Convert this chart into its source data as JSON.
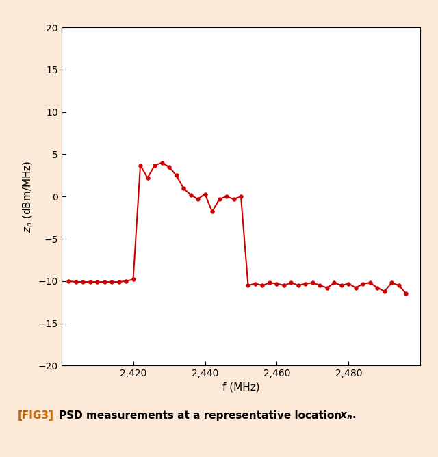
{
  "x": [
    2402,
    2404,
    2406,
    2408,
    2410,
    2412,
    2414,
    2416,
    2418,
    2420,
    2422,
    2424,
    2426,
    2428,
    2430,
    2432,
    2434,
    2436,
    2438,
    2440,
    2442,
    2444,
    2446,
    2448,
    2450,
    2452,
    2454,
    2456,
    2458,
    2460,
    2462,
    2464,
    2466,
    2468,
    2470,
    2472,
    2474,
    2476,
    2478,
    2480,
    2482,
    2484,
    2486,
    2488,
    2490,
    2492,
    2494,
    2496
  ],
  "y": [
    -10.0,
    -10.1,
    -10.1,
    -10.1,
    -10.1,
    -10.1,
    -10.1,
    -10.1,
    -10.0,
    -9.8,
    3.7,
    2.2,
    3.7,
    4.0,
    3.5,
    2.5,
    1.0,
    0.2,
    -0.3,
    0.3,
    -1.8,
    -0.3,
    0.0,
    -0.3,
    0.0,
    -10.5,
    -10.3,
    -10.5,
    -10.2,
    -10.3,
    -10.5,
    -10.2,
    -10.5,
    -10.3,
    -10.2,
    -10.5,
    -10.8,
    -10.2,
    -10.5,
    -10.3,
    -10.8,
    -10.3,
    -10.2,
    -10.8,
    -11.2,
    -10.2,
    -10.5,
    -11.5
  ],
  "line_color": "#cc0000",
  "marker": "o",
  "markersize": 4.0,
  "linewidth": 1.5,
  "xlim": [
    2400,
    2500
  ],
  "ylim": [
    -20,
    20
  ],
  "xlabel": "f (MHz)",
  "xticks": [
    2420,
    2440,
    2460,
    2480
  ],
  "xtick_labels": [
    "2,420",
    "2,440",
    "2,460",
    "2,480"
  ],
  "yticks": [
    -20,
    -15,
    -10,
    -5,
    0,
    5,
    10,
    15,
    20
  ],
  "background_color": "#fce9d8",
  "plot_bg_color": "#ffffff",
  "caption_fig": "[FIG3]",
  "caption_text": "PSD measurements at a representative location ",
  "caption_color_fig": "#cc6600",
  "caption_color_text": "#000000",
  "axis_fontsize": 11,
  "tick_fontsize": 10,
  "caption_fontsize": 11
}
